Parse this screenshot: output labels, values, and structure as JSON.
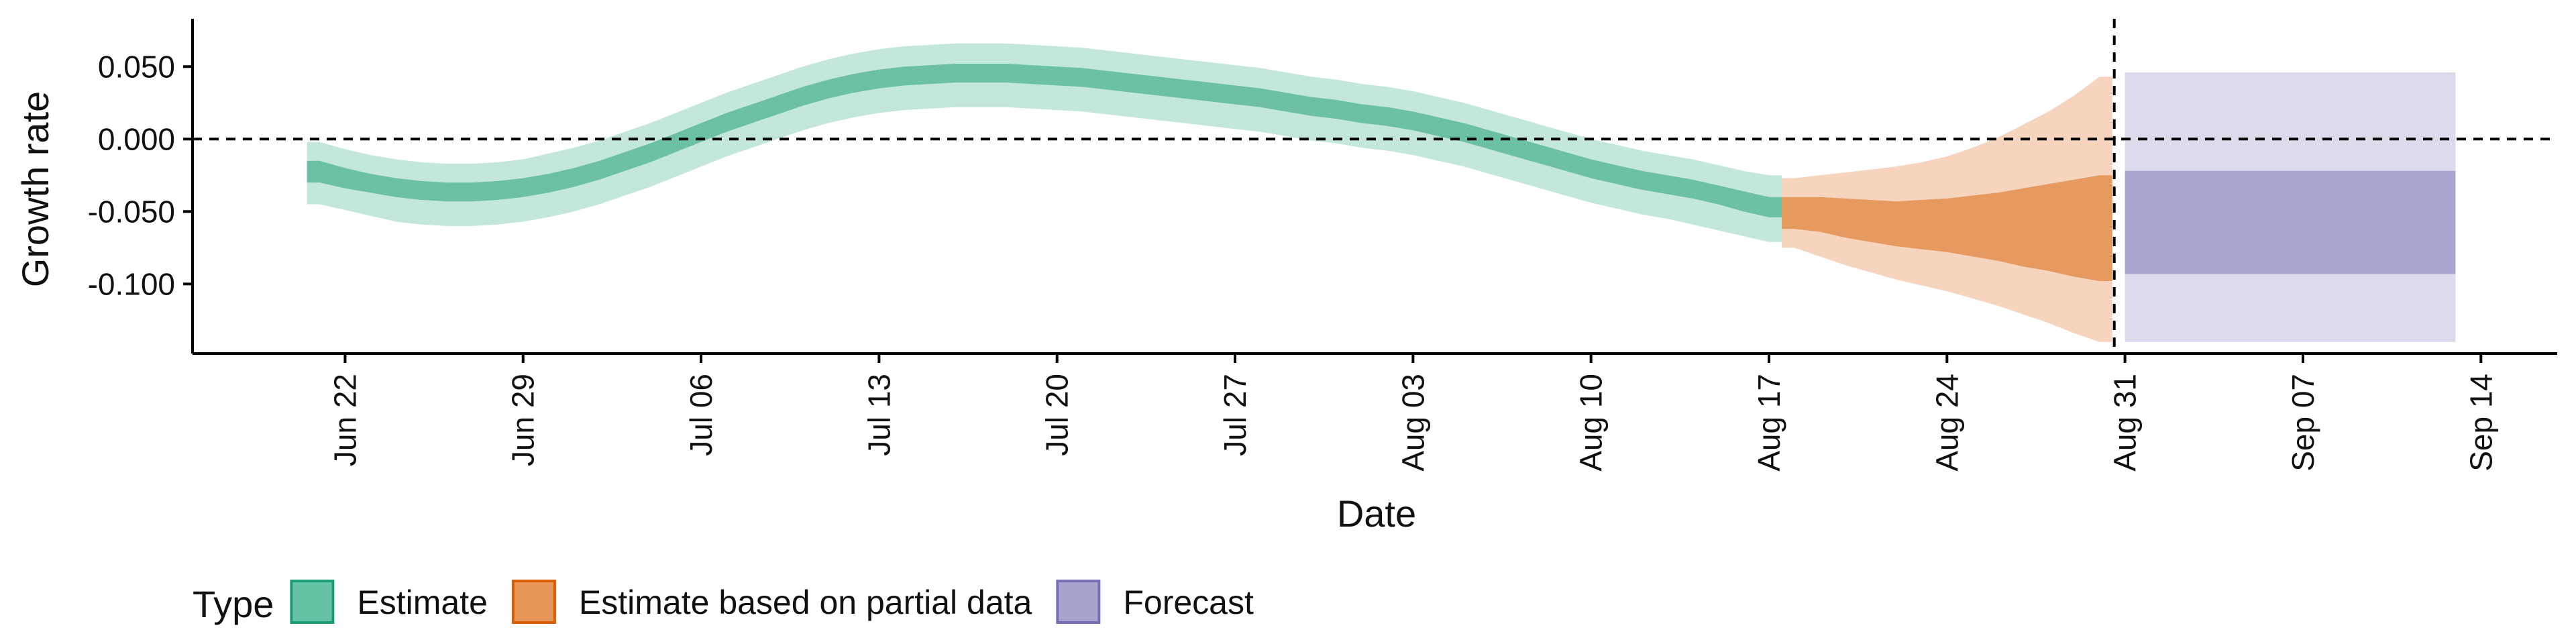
{
  "chart_data": {
    "type": "area",
    "xlabel": "Date",
    "ylabel": "Growth rate",
    "x_axis": {
      "type": "date",
      "range": [
        "2020-06-16",
        "2020-09-17"
      ],
      "ticks": [
        {
          "date": "2020-06-22",
          "label": "Jun 22"
        },
        {
          "date": "2020-06-29",
          "label": "Jun 29"
        },
        {
          "date": "2020-07-06",
          "label": "Jul 06"
        },
        {
          "date": "2020-07-13",
          "label": "Jul 13"
        },
        {
          "date": "2020-07-20",
          "label": "Jul 20"
        },
        {
          "date": "2020-07-27",
          "label": "Jul 27"
        },
        {
          "date": "2020-08-03",
          "label": "Aug 03"
        },
        {
          "date": "2020-08-10",
          "label": "Aug 10"
        },
        {
          "date": "2020-08-17",
          "label": "Aug 17"
        },
        {
          "date": "2020-08-24",
          "label": "Aug 24"
        },
        {
          "date": "2020-08-31",
          "label": "Aug 31"
        },
        {
          "date": "2020-09-07",
          "label": "Sep 07"
        },
        {
          "date": "2020-09-14",
          "label": "Sep 14"
        }
      ]
    },
    "y_axis": {
      "range": [
        -0.148,
        0.083
      ],
      "ticks": [
        {
          "value": 0.05,
          "label": "0.050"
        },
        {
          "value": 0.0,
          "label": "0.000"
        },
        {
          "value": -0.05,
          "label": "-0.050"
        },
        {
          "value": -0.1,
          "label": "-0.100"
        }
      ]
    },
    "reference_lines": [
      {
        "axis": "y",
        "value": 0.0,
        "style": "dashed"
      },
      {
        "axis": "x",
        "value": "2020-08-30",
        "style": "dashed"
      }
    ],
    "legend": {
      "title": "Type",
      "position": "bottom-left",
      "entries": [
        {
          "label": "Estimate",
          "fill": "#66c2a5",
          "border": "#1b9e77"
        },
        {
          "label": "Estimate based on partial data",
          "fill": "#e8955a",
          "border": "#d95f02"
        },
        {
          "label": "Forecast",
          "fill": "#a7a3cf",
          "border": "#7570b3"
        }
      ]
    },
    "series": [
      {
        "name": "Estimate",
        "outer_color": "#c3e7db",
        "inner_color": "#6cc1a3",
        "points": [
          {
            "date": "2020-06-21",
            "lo90": -0.045,
            "lo50": -0.03,
            "hi50": -0.015,
            "hi90": -0.002
          },
          {
            "date": "2020-06-22",
            "lo90": -0.049,
            "lo50": -0.034,
            "hi50": -0.02,
            "hi90": -0.007
          },
          {
            "date": "2020-06-23",
            "lo90": -0.053,
            "lo50": -0.037,
            "hi50": -0.024,
            "hi90": -0.011
          },
          {
            "date": "2020-06-24",
            "lo90": -0.057,
            "lo50": -0.04,
            "hi50": -0.027,
            "hi90": -0.014
          },
          {
            "date": "2020-06-25",
            "lo90": -0.059,
            "lo50": -0.042,
            "hi50": -0.029,
            "hi90": -0.016
          },
          {
            "date": "2020-06-26",
            "lo90": -0.06,
            "lo50": -0.043,
            "hi50": -0.03,
            "hi90": -0.017
          },
          {
            "date": "2020-06-27",
            "lo90": -0.06,
            "lo50": -0.043,
            "hi50": -0.03,
            "hi90": -0.017
          },
          {
            "date": "2020-06-28",
            "lo90": -0.059,
            "lo50": -0.042,
            "hi50": -0.029,
            "hi90": -0.016
          },
          {
            "date": "2020-06-29",
            "lo90": -0.057,
            "lo50": -0.04,
            "hi50": -0.027,
            "hi90": -0.014
          },
          {
            "date": "2020-06-30",
            "lo90": -0.054,
            "lo50": -0.037,
            "hi50": -0.024,
            "hi90": -0.01
          },
          {
            "date": "2020-07-01",
            "lo90": -0.05,
            "lo50": -0.033,
            "hi50": -0.02,
            "hi90": -0.006
          },
          {
            "date": "2020-07-02",
            "lo90": -0.045,
            "lo50": -0.028,
            "hi50": -0.015,
            "hi90": -0.001
          },
          {
            "date": "2020-07-03",
            "lo90": -0.039,
            "lo50": -0.022,
            "hi50": -0.009,
            "hi90": 0.005
          },
          {
            "date": "2020-07-04",
            "lo90": -0.033,
            "lo50": -0.016,
            "hi50": -0.003,
            "hi90": 0.011
          },
          {
            "date": "2020-07-05",
            "lo90": -0.026,
            "lo50": -0.009,
            "hi50": 0.004,
            "hi90": 0.018
          },
          {
            "date": "2020-07-06",
            "lo90": -0.019,
            "lo50": -0.002,
            "hi50": 0.011,
            "hi90": 0.025
          },
          {
            "date": "2020-07-07",
            "lo90": -0.012,
            "lo50": 0.005,
            "hi50": 0.018,
            "hi90": 0.032
          },
          {
            "date": "2020-07-08",
            "lo90": -0.006,
            "lo50": 0.011,
            "hi50": 0.024,
            "hi90": 0.038
          },
          {
            "date": "2020-07-09",
            "lo90": 0.0,
            "lo50": 0.017,
            "hi50": 0.03,
            "hi90": 0.044
          },
          {
            "date": "2020-07-10",
            "lo90": 0.006,
            "lo50": 0.023,
            "hi50": 0.036,
            "hi90": 0.05
          },
          {
            "date": "2020-07-11",
            "lo90": 0.011,
            "lo50": 0.028,
            "hi50": 0.041,
            "hi90": 0.055
          },
          {
            "date": "2020-07-12",
            "lo90": 0.015,
            "lo50": 0.032,
            "hi50": 0.045,
            "hi90": 0.059
          },
          {
            "date": "2020-07-13",
            "lo90": 0.018,
            "lo50": 0.035,
            "hi50": 0.048,
            "hi90": 0.062
          },
          {
            "date": "2020-07-14",
            "lo90": 0.02,
            "lo50": 0.037,
            "hi50": 0.05,
            "hi90": 0.064
          },
          {
            "date": "2020-07-15",
            "lo90": 0.021,
            "lo50": 0.038,
            "hi50": 0.051,
            "hi90": 0.065
          },
          {
            "date": "2020-07-16",
            "lo90": 0.022,
            "lo50": 0.039,
            "hi50": 0.052,
            "hi90": 0.066
          },
          {
            "date": "2020-07-17",
            "lo90": 0.022,
            "lo50": 0.039,
            "hi50": 0.052,
            "hi90": 0.066
          },
          {
            "date": "2020-07-18",
            "lo90": 0.022,
            "lo50": 0.039,
            "hi50": 0.052,
            "hi90": 0.066
          },
          {
            "date": "2020-07-19",
            "lo90": 0.021,
            "lo50": 0.038,
            "hi50": 0.051,
            "hi90": 0.065
          },
          {
            "date": "2020-07-20",
            "lo90": 0.02,
            "lo50": 0.037,
            "hi50": 0.05,
            "hi90": 0.064
          },
          {
            "date": "2020-07-21",
            "lo90": 0.019,
            "lo50": 0.036,
            "hi50": 0.049,
            "hi90": 0.063
          },
          {
            "date": "2020-07-22",
            "lo90": 0.017,
            "lo50": 0.034,
            "hi50": 0.047,
            "hi90": 0.061
          },
          {
            "date": "2020-07-23",
            "lo90": 0.015,
            "lo50": 0.032,
            "hi50": 0.045,
            "hi90": 0.059
          },
          {
            "date": "2020-07-24",
            "lo90": 0.013,
            "lo50": 0.03,
            "hi50": 0.043,
            "hi90": 0.057
          },
          {
            "date": "2020-07-25",
            "lo90": 0.011,
            "lo50": 0.028,
            "hi50": 0.041,
            "hi90": 0.055
          },
          {
            "date": "2020-07-26",
            "lo90": 0.009,
            "lo50": 0.026,
            "hi50": 0.039,
            "hi90": 0.053
          },
          {
            "date": "2020-07-27",
            "lo90": 0.007,
            "lo50": 0.024,
            "hi50": 0.037,
            "hi90": 0.051
          },
          {
            "date": "2020-07-28",
            "lo90": 0.005,
            "lo50": 0.022,
            "hi50": 0.035,
            "hi90": 0.049
          },
          {
            "date": "2020-07-29",
            "lo90": 0.002,
            "lo50": 0.019,
            "hi50": 0.032,
            "hi90": 0.046
          },
          {
            "date": "2020-07-30",
            "lo90": -0.001,
            "lo50": 0.016,
            "hi50": 0.029,
            "hi90": 0.043
          },
          {
            "date": "2020-07-31",
            "lo90": -0.003,
            "lo50": 0.014,
            "hi50": 0.027,
            "hi90": 0.041
          },
          {
            "date": "2020-08-01",
            "lo90": -0.006,
            "lo50": 0.011,
            "hi50": 0.024,
            "hi90": 0.038
          },
          {
            "date": "2020-08-02",
            "lo90": -0.008,
            "lo50": 0.009,
            "hi50": 0.022,
            "hi90": 0.036
          },
          {
            "date": "2020-08-03",
            "lo90": -0.011,
            "lo50": 0.006,
            "hi50": 0.019,
            "hi90": 0.033
          },
          {
            "date": "2020-08-04",
            "lo90": -0.015,
            "lo50": 0.002,
            "hi50": 0.015,
            "hi90": 0.029
          },
          {
            "date": "2020-08-05",
            "lo90": -0.019,
            "lo50": -0.002,
            "hi50": 0.011,
            "hi90": 0.025
          },
          {
            "date": "2020-08-06",
            "lo90": -0.024,
            "lo50": -0.007,
            "hi50": 0.006,
            "hi90": 0.02
          },
          {
            "date": "2020-08-07",
            "lo90": -0.029,
            "lo50": -0.012,
            "hi50": 0.001,
            "hi90": 0.015
          },
          {
            "date": "2020-08-08",
            "lo90": -0.034,
            "lo50": -0.017,
            "hi50": -0.004,
            "hi90": 0.01
          },
          {
            "date": "2020-08-09",
            "lo90": -0.039,
            "lo50": -0.022,
            "hi50": -0.009,
            "hi90": 0.005
          },
          {
            "date": "2020-08-10",
            "lo90": -0.044,
            "lo50": -0.027,
            "hi50": -0.014,
            "hi90": 0.0
          },
          {
            "date": "2020-08-11",
            "lo90": -0.048,
            "lo50": -0.031,
            "hi50": -0.018,
            "hi90": -0.004
          },
          {
            "date": "2020-08-12",
            "lo90": -0.052,
            "lo50": -0.035,
            "hi50": -0.022,
            "hi90": -0.008
          },
          {
            "date": "2020-08-13",
            "lo90": -0.055,
            "lo50": -0.038,
            "hi50": -0.025,
            "hi90": -0.011
          },
          {
            "date": "2020-08-14",
            "lo90": -0.059,
            "lo50": -0.041,
            "hi50": -0.028,
            "hi90": -0.014
          },
          {
            "date": "2020-08-15",
            "lo90": -0.063,
            "lo50": -0.045,
            "hi50": -0.032,
            "hi90": -0.018
          },
          {
            "date": "2020-08-16",
            "lo90": -0.067,
            "lo50": -0.05,
            "hi50": -0.036,
            "hi90": -0.022
          },
          {
            "date": "2020-08-17",
            "lo90": -0.071,
            "lo50": -0.054,
            "hi50": -0.04,
            "hi90": -0.025
          }
        ]
      },
      {
        "name": "Estimate based on partial data",
        "outer_color": "#f7d4bd",
        "inner_color": "#e69a60",
        "points": [
          {
            "date": "2020-08-18",
            "lo90": -0.075,
            "lo50": -0.062,
            "hi50": -0.04,
            "hi90": -0.027
          },
          {
            "date": "2020-08-19",
            "lo90": -0.081,
            "lo50": -0.064,
            "hi50": -0.04,
            "hi90": -0.025
          },
          {
            "date": "2020-08-20",
            "lo90": -0.087,
            "lo50": -0.068,
            "hi50": -0.041,
            "hi90": -0.023
          },
          {
            "date": "2020-08-21",
            "lo90": -0.092,
            "lo50": -0.071,
            "hi50": -0.042,
            "hi90": -0.021
          },
          {
            "date": "2020-08-22",
            "lo90": -0.097,
            "lo50": -0.074,
            "hi50": -0.043,
            "hi90": -0.019
          },
          {
            "date": "2020-08-23",
            "lo90": -0.101,
            "lo50": -0.076,
            "hi50": -0.042,
            "hi90": -0.016
          },
          {
            "date": "2020-08-24",
            "lo90": -0.105,
            "lo50": -0.078,
            "hi50": -0.041,
            "hi90": -0.012
          },
          {
            "date": "2020-08-25",
            "lo90": -0.11,
            "lo50": -0.081,
            "hi50": -0.039,
            "hi90": -0.006
          },
          {
            "date": "2020-08-26",
            "lo90": -0.115,
            "lo50": -0.084,
            "hi50": -0.037,
            "hi90": 0.001
          },
          {
            "date": "2020-08-27",
            "lo90": -0.121,
            "lo50": -0.088,
            "hi50": -0.034,
            "hi90": 0.01
          },
          {
            "date": "2020-08-28",
            "lo90": -0.127,
            "lo50": -0.091,
            "hi50": -0.031,
            "hi90": 0.019
          },
          {
            "date": "2020-08-29",
            "lo90": -0.134,
            "lo50": -0.095,
            "hi50": -0.028,
            "hi90": 0.03
          },
          {
            "date": "2020-08-30",
            "lo90": -0.14,
            "lo50": -0.098,
            "hi50": -0.025,
            "hi90": 0.043
          }
        ]
      },
      {
        "name": "Forecast",
        "outer_color": "#dcdbec",
        "inner_color": "#a8a4d0",
        "points": [
          {
            "date": "2020-08-31",
            "lo90": -0.14,
            "lo50": -0.093,
            "hi50": -0.022,
            "hi90": 0.046
          },
          {
            "date": "2020-09-13",
            "lo90": -0.14,
            "lo50": -0.093,
            "hi50": -0.022,
            "hi90": 0.046
          }
        ]
      }
    ]
  }
}
